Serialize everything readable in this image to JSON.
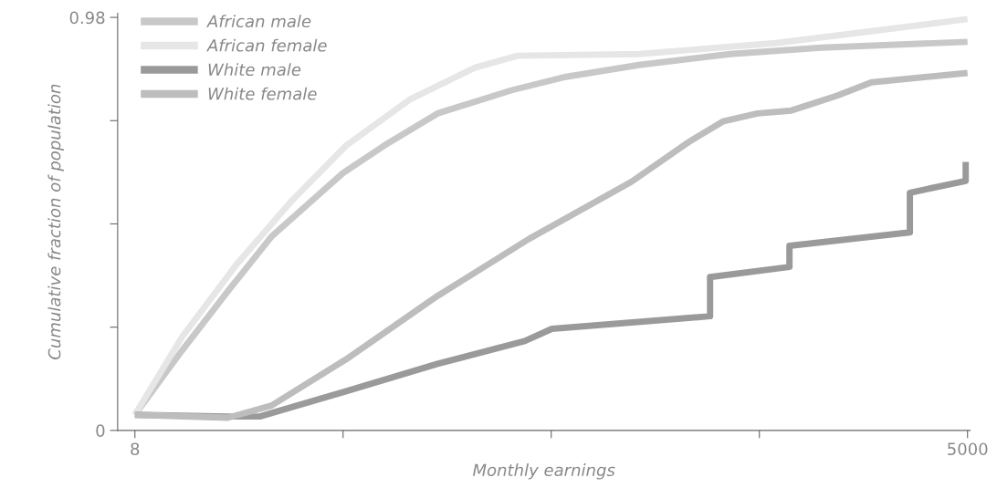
{
  "chart_data": {
    "type": "line",
    "xlabel": "Monthly earnings",
    "ylabel": "Cumulative fraction of population",
    "log": "x",
    "xlim": [
      7,
      5100
    ],
    "xticks": [
      8,
      {
        "value": 40,
        "label": null
      },
      {
        "value": 200,
        "label": null
      },
      {
        "value": 1000,
        "label": null
      },
      5000
    ],
    "ylim": [
      0,
      0.99
    ],
    "yticks": [
      0,
      {
        "value": 0.245,
        "label": null
      },
      {
        "value": 0.49,
        "label": null
      },
      {
        "value": 0.735,
        "label": null
      },
      0.98
    ],
    "grid": false,
    "legend": "top left",
    "marker": "none",
    "line_style": "solid",
    "series": [
      {
        "name": "African male",
        "color": "#c8c8c8",
        "x": [
          8,
          11.5,
          16.4,
          23,
          40,
          55,
          83,
          147,
          224,
          394,
          798,
          1616,
          5000
        ],
        "values": [
          0.037,
          0.189,
          0.33,
          0.46,
          0.611,
          0.676,
          0.752,
          0.807,
          0.839,
          0.867,
          0.893,
          0.908,
          0.922
        ]
      },
      {
        "name": "African female",
        "color": "#e6e6e6",
        "x": [
          8,
          11.5,
          17.6,
          27,
          41,
          67,
          111,
          154,
          394,
          1135,
          5000
        ],
        "values": [
          0.037,
          0.221,
          0.395,
          0.546,
          0.676,
          0.785,
          0.861,
          0.889,
          0.893,
          0.919,
          0.976
        ]
      },
      {
        "name": "White male",
        "color": "#9a9a9a",
        "x": [
          8,
          16.4,
          21,
          41,
          83,
          163,
          201,
          683,
          683,
          1262,
          1262,
          3202,
          3202,
          4930,
          4930
        ],
        "values": [
          0.037,
          0.033,
          0.033,
          0.093,
          0.158,
          0.212,
          0.241,
          0.271,
          0.364,
          0.388,
          0.438,
          0.47,
          0.564,
          0.592,
          0.637
        ]
      },
      {
        "name": "White female",
        "color": "#bdbdbd",
        "x": [
          8,
          16.4,
          23,
          41,
          83,
          169,
          372,
          581,
          754,
          985,
          1280,
          1820,
          2380,
          5000
        ],
        "values": [
          0.037,
          0.03,
          0.059,
          0.169,
          0.319,
          0.455,
          0.59,
          0.685,
          0.733,
          0.752,
          0.759,
          0.794,
          0.826,
          0.848
        ]
      }
    ]
  }
}
